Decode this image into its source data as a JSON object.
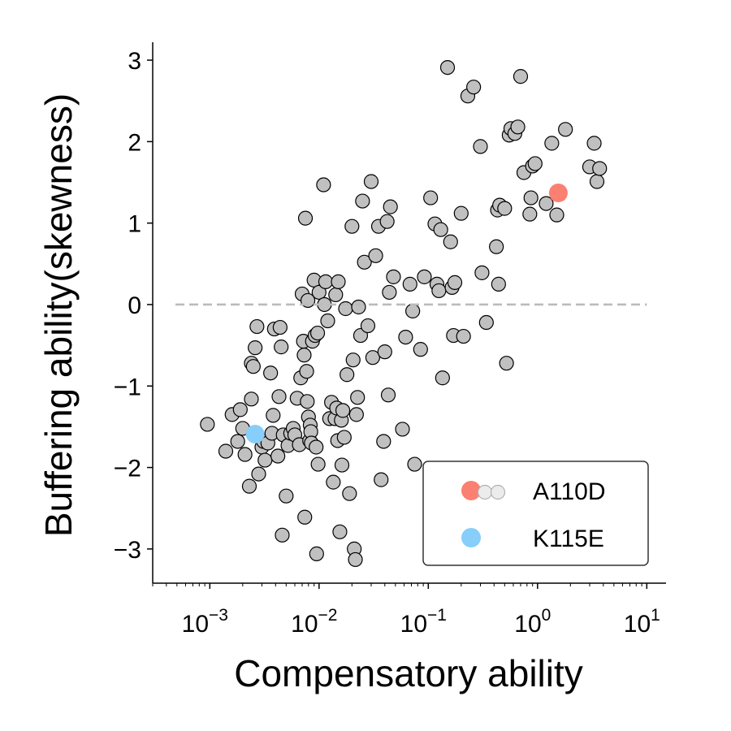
{
  "chart_data": {
    "type": "scatter",
    "title": "",
    "xlabel": "Compensatory ability",
    "ylabel": "Buffering ability(skewness)",
    "xscale": "log",
    "xlim": [
      0.0003,
      15
    ],
    "ylim": [
      -3.42,
      3.22
    ],
    "xticks": [
      {
        "value": 0.001,
        "base": "10",
        "exp": "−3"
      },
      {
        "value": 0.01,
        "base": "10",
        "exp": "−2"
      },
      {
        "value": 0.1,
        "base": "10",
        "exp": "−1"
      },
      {
        "value": 1,
        "base": "10",
        "exp": "0"
      },
      {
        "value": 10,
        "base": "10",
        "exp": "1"
      }
    ],
    "yticks": [
      {
        "value": 3,
        "label": "3"
      },
      {
        "value": 2,
        "label": "2"
      },
      {
        "value": 1,
        "label": "1"
      },
      {
        "value": 0,
        "label": "0"
      },
      {
        "value": -1,
        "label": "−1"
      },
      {
        "value": -2,
        "label": "−2"
      },
      {
        "value": -3,
        "label": "−3"
      }
    ],
    "reference_line": {
      "y": 0,
      "style": "dashed",
      "color": "#bbbbbb"
    },
    "grid": false,
    "legend_position": "lower-right",
    "colors": {
      "points": "#c0c0c0",
      "edge": "#000000",
      "A110D": "#fa8072",
      "K115E": "#87cefa"
    },
    "background_points": [
      [
        0.00095,
        -1.47
      ],
      [
        0.0014,
        -1.8
      ],
      [
        0.0016,
        -1.35
      ],
      [
        0.0018,
        -1.68
      ],
      [
        0.0019,
        -1.29
      ],
      [
        0.002,
        -1.52
      ],
      [
        0.0021,
        -1.84
      ],
      [
        0.0023,
        -2.23
      ],
      [
        0.0024,
        -1.16
      ],
      [
        0.0024,
        -0.72
      ],
      [
        0.0025,
        -0.76
      ],
      [
        0.0026,
        -0.53
      ],
      [
        0.0027,
        -0.27
      ],
      [
        0.0028,
        -2.08
      ],
      [
        0.003,
        -1.75
      ],
      [
        0.0031,
        -1.68
      ],
      [
        0.0032,
        -1.91
      ],
      [
        0.0034,
        -1.7
      ],
      [
        0.0036,
        -0.84
      ],
      [
        0.0037,
        -1.58
      ],
      [
        0.0038,
        -1.36
      ],
      [
        0.0039,
        -0.3
      ],
      [
        0.0042,
        -1.86
      ],
      [
        0.0043,
        -1.13
      ],
      [
        0.0044,
        -0.28
      ],
      [
        0.0045,
        -0.52
      ],
      [
        0.0046,
        -2.83
      ],
      [
        0.0047,
        -1.6
      ],
      [
        0.005,
        -2.35
      ],
      [
        0.0052,
        -1.73
      ],
      [
        0.0055,
        -1.58
      ],
      [
        0.0058,
        -1.52
      ],
      [
        0.006,
        -1.6
      ],
      [
        0.0063,
        -1.15
      ],
      [
        0.0066,
        -1.72
      ],
      [
        0.0068,
        -0.9
      ],
      [
        0.007,
        0.13
      ],
      [
        0.0072,
        -0.45
      ],
      [
        0.0073,
        -0.62
      ],
      [
        0.0074,
        -2.61
      ],
      [
        0.0075,
        1.06
      ],
      [
        0.0077,
        -0.82
      ],
      [
        0.0078,
        -1.19
      ],
      [
        0.0079,
        0.05
      ],
      [
        0.008,
        -1.38
      ],
      [
        0.0082,
        -1.67
      ],
      [
        0.0083,
        -1.48
      ],
      [
        0.0084,
        -1.56
      ],
      [
        0.0085,
        -1.7
      ],
      [
        0.0087,
        -0.45
      ],
      [
        0.009,
        0.3
      ],
      [
        0.0092,
        -0.38
      ],
      [
        0.0094,
        -1.75
      ],
      [
        0.0095,
        -3.06
      ],
      [
        0.0097,
        -0.35
      ],
      [
        0.0098,
        -1.96
      ],
      [
        0.01,
        0.15
      ],
      [
        0.011,
        1.47
      ],
      [
        0.0112,
        -0.0
      ],
      [
        0.0115,
        0.28
      ],
      [
        0.012,
        -0.2
      ],
      [
        0.0125,
        -1.4
      ],
      [
        0.013,
        -1.2
      ],
      [
        0.0135,
        -2.18
      ],
      [
        0.014,
        -1.4
      ],
      [
        0.0142,
        0.12
      ],
      [
        0.0145,
        -1.27
      ],
      [
        0.0148,
        -1.67
      ],
      [
        0.015,
        0.28
      ],
      [
        0.0155,
        -2.79
      ],
      [
        0.016,
        -1.42
      ],
      [
        0.0162,
        -1.97
      ],
      [
        0.0165,
        -1.3
      ],
      [
        0.017,
        -1.63
      ],
      [
        0.0175,
        -0.05
      ],
      [
        0.018,
        -0.86
      ],
      [
        0.019,
        -2.32
      ],
      [
        0.02,
        0.96
      ],
      [
        0.0205,
        -0.68
      ],
      [
        0.021,
        -3.0
      ],
      [
        0.0215,
        -3.13
      ],
      [
        0.022,
        -1.35
      ],
      [
        0.0225,
        -1.14
      ],
      [
        0.023,
        -0.03
      ],
      [
        0.024,
        -0.38
      ],
      [
        0.025,
        1.27
      ],
      [
        0.026,
        0.52
      ],
      [
        0.028,
        -0.26
      ],
      [
        0.03,
        1.51
      ],
      [
        0.031,
        -0.65
      ],
      [
        0.033,
        0.6
      ],
      [
        0.035,
        0.96
      ],
      [
        0.037,
        -2.15
      ],
      [
        0.039,
        -1.68
      ],
      [
        0.04,
        -0.58
      ],
      [
        0.042,
        1.02
      ],
      [
        0.043,
        -1.11
      ],
      [
        0.044,
        0.15
      ],
      [
        0.045,
        1.2
      ],
      [
        0.048,
        0.34
      ],
      [
        0.058,
        -1.53
      ],
      [
        0.062,
        -0.4
      ],
      [
        0.068,
        0.25
      ],
      [
        0.072,
        -0.08
      ],
      [
        0.075,
        -1.96
      ],
      [
        0.085,
        -0.55
      ],
      [
        0.092,
        0.34
      ],
      [
        0.105,
        1.31
      ],
      [
        0.115,
        0.99
      ],
      [
        0.12,
        0.25
      ],
      [
        0.125,
        0.17
      ],
      [
        0.13,
        0.92
      ],
      [
        0.135,
        -0.9
      ],
      [
        0.15,
        2.91
      ],
      [
        0.16,
        0.77
      ],
      [
        0.165,
        0.21
      ],
      [
        0.17,
        -0.38
      ],
      [
        0.175,
        0.27
      ],
      [
        0.2,
        1.12
      ],
      [
        0.21,
        -0.39
      ],
      [
        0.23,
        2.56
      ],
      [
        0.26,
        2.67
      ],
      [
        0.3,
        1.94
      ],
      [
        0.31,
        0.39
      ],
      [
        0.34,
        -0.22
      ],
      [
        0.42,
        0.71
      ],
      [
        0.43,
        1.16
      ],
      [
        0.44,
        0.25
      ],
      [
        0.45,
        1.22
      ],
      [
        0.5,
        1.18
      ],
      [
        0.52,
        -0.72
      ],
      [
        0.55,
        2.08
      ],
      [
        0.57,
        2.16
      ],
      [
        0.62,
        2.1
      ],
      [
        0.66,
        2.18
      ],
      [
        0.7,
        2.8
      ],
      [
        0.75,
        1.62
      ],
      [
        0.85,
        1.11
      ],
      [
        0.87,
        1.31
      ],
      [
        0.9,
        1.7
      ],
      [
        0.95,
        1.73
      ],
      [
        1.2,
        1.24
      ],
      [
        1.35,
        1.98
      ],
      [
        1.5,
        1.1
      ],
      [
        1.8,
        2.15
      ],
      [
        3.0,
        1.69
      ],
      [
        3.3,
        1.98
      ],
      [
        3.5,
        1.51
      ],
      [
        3.7,
        1.67
      ]
    ],
    "highlight_series": [
      {
        "name": "A110D",
        "x": [
          1.55
        ],
        "y": [
          1.37
        ]
      },
      {
        "name": "K115E",
        "x": [
          0.0026
        ],
        "y": [
          -1.59
        ]
      }
    ]
  },
  "legend": {
    "items": [
      {
        "name": "A110D",
        "color": "#fa8072"
      },
      {
        "name": "K115E",
        "color": "#87cefa"
      }
    ]
  }
}
